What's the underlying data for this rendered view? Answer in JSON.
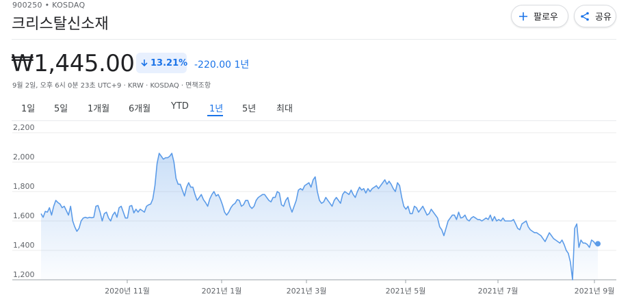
{
  "header": {
    "ticker": "900250 • KOSDAQ",
    "company": "크리스탈신소재",
    "follow_label": "팔로우",
    "share_label": "공유",
    "follow_icon": "plus-icon",
    "share_icon": "share-icon"
  },
  "quote": {
    "price": "₩1,445.00",
    "change_pct": "13.21%",
    "change_abs": "-220.00 1년",
    "meta": "9월 2일, 오후 6시 0분 23초 UTC+9 · KRW · KOSDAQ · 면책조항"
  },
  "tabs": [
    {
      "label": "1일"
    },
    {
      "label": "5일"
    },
    {
      "label": "1개월"
    },
    {
      "label": "6개월"
    },
    {
      "label": "YTD"
    },
    {
      "label": "1년",
      "active": true
    },
    {
      "label": "5년"
    },
    {
      "label": "최대"
    }
  ],
  "colors": {
    "accent": "#1a73e8",
    "line": "#5b9be8",
    "grid": "#ebebeb"
  },
  "chart_data": {
    "type": "area",
    "title": "",
    "xlabel": "",
    "ylabel": "",
    "ylim": [
      1200,
      2200
    ],
    "y_ticks": [
      "2,200",
      "2,000",
      "1,800",
      "1,600",
      "1,400",
      "1,200"
    ],
    "x_ticks": [
      "2020년 11월",
      "2021년 1월",
      "2021년 3월",
      "2021년 5월",
      "2021년 7월",
      "2021년 9월"
    ],
    "grid": true,
    "series": [
      {
        "values": [
          1650,
          1625,
          1665,
          1660,
          1690,
          1640,
          1700,
          1740,
          1725,
          1715,
          1690,
          1700,
          1670,
          1640,
          1700,
          1600,
          1560,
          1530,
          1550,
          1600,
          1620,
          1625,
          1620,
          1625,
          1622,
          1625,
          1700,
          1705,
          1660,
          1600,
          1650,
          1660,
          1620,
          1600,
          1640,
          1660,
          1625,
          1690,
          1700,
          1660,
          1620,
          1620,
          1700,
          1705,
          1655,
          1680,
          1660,
          1680,
          1670,
          1660,
          1700,
          1710,
          1715,
          1750,
          1840,
          1990,
          2060,
          2040,
          2020,
          2030,
          2030,
          2040,
          2060,
          2000,
          1890,
          1850,
          1850,
          1810,
          1770,
          1830,
          1860,
          1830,
          1830,
          1780,
          1740,
          1760,
          1780,
          1745,
          1725,
          1700,
          1750,
          1780,
          1800,
          1770,
          1780,
          1750,
          1710,
          1660,
          1640,
          1660,
          1690,
          1710,
          1720,
          1745,
          1740,
          1700,
          1710,
          1740,
          1740,
          1700,
          1685,
          1700,
          1740,
          1760,
          1770,
          1780,
          1780,
          1760,
          1740,
          1730,
          1760,
          1760,
          1800,
          1790,
          1710,
          1700,
          1740,
          1760,
          1700,
          1660,
          1700,
          1740,
          1810,
          1820,
          1810,
          1840,
          1850,
          1860,
          1830,
          1880,
          1900,
          1800,
          1740,
          1720,
          1730,
          1760,
          1740,
          1720,
          1700,
          1740,
          1760,
          1740,
          1720,
          1780,
          1800,
          1790,
          1780,
          1810,
          1780,
          1760,
          1800,
          1830,
          1810,
          1820,
          1790,
          1820,
          1800,
          1820,
          1830,
          1840,
          1820,
          1840,
          1860,
          1880,
          1850,
          1870,
          1850,
          1820,
          1800,
          1860,
          1840,
          1760,
          1700,
          1680,
          1700,
          1650,
          1650,
          1700,
          1690,
          1660,
          1680,
          1700,
          1670,
          1640,
          1650,
          1680,
          1660,
          1640,
          1620,
          1560,
          1540,
          1500,
          1550,
          1600,
          1620,
          1640,
          1640,
          1610,
          1660,
          1620,
          1625,
          1640,
          1610,
          1600,
          1620,
          1630,
          1620,
          1610,
          1610,
          1600,
          1610,
          1620,
          1610,
          1640,
          1600,
          1630,
          1600,
          1610,
          1600,
          1620,
          1600,
          1600,
          1600,
          1600,
          1610,
          1580,
          1550,
          1540,
          1580,
          1590,
          1600,
          1560,
          1540,
          1530,
          1520,
          1520,
          1510,
          1500,
          1480,
          1460,
          1490,
          1520,
          1500,
          1480,
          1470,
          1460,
          1450,
          1470,
          1440,
          1400,
          1380,
          1320,
          1200,
          1550,
          1580,
          1420,
          1470,
          1450,
          1450,
          1440,
          1420,
          1470,
          1460,
          1440,
          1445
        ]
      }
    ]
  }
}
